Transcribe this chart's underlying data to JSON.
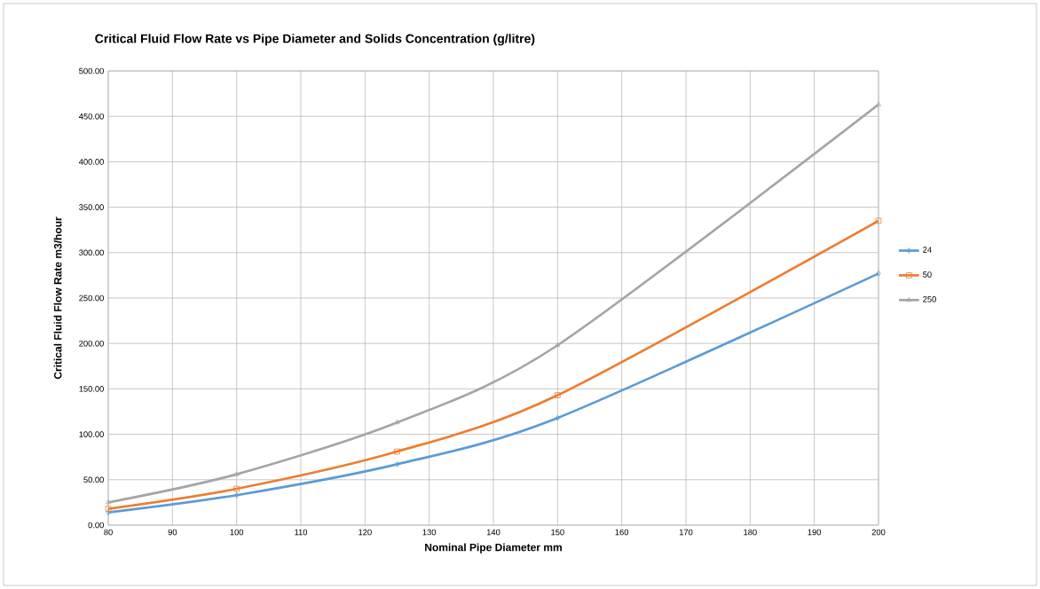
{
  "chart_data": {
    "type": "line",
    "title": "Critical Fluid Flow Rate vs Pipe Diameter and Solids Concentration (g/litre)",
    "xlabel": "Nominal Pipe Diameter mm",
    "ylabel": "Critical Fluid Flow Rate m3/hour",
    "x": [
      80,
      100,
      125,
      150,
      200
    ],
    "series": [
      {
        "name": "24",
        "color": "#5b9bd5",
        "marker": "diamond",
        "values": [
          14,
          33,
          67,
          118,
          277
        ]
      },
      {
        "name": "50",
        "color": "#ed7d31",
        "marker": "square",
        "values": [
          18,
          40,
          81,
          143,
          335
        ]
      },
      {
        "name": "250",
        "color": "#a5a5a5",
        "marker": "triangle",
        "values": [
          25,
          56,
          113,
          198,
          463
        ]
      }
    ],
    "xlim": [
      80,
      200
    ],
    "xticks": [
      80,
      90,
      100,
      110,
      120,
      130,
      140,
      150,
      160,
      170,
      180,
      190,
      200
    ],
    "ylim": [
      0,
      500
    ],
    "yticks": [
      {
        "value": 0,
        "label": "0.00"
      },
      {
        "value": 50,
        "label": "50.00"
      },
      {
        "value": 100,
        "label": "100.00"
      },
      {
        "value": 150,
        "label": "150.00"
      },
      {
        "value": 200,
        "label": "200.00"
      },
      {
        "value": 250,
        "label": "250.00"
      },
      {
        "value": 300,
        "label": "300.00"
      },
      {
        "value": 350,
        "label": "350.00"
      },
      {
        "value": 400,
        "label": "400.00"
      },
      {
        "value": 450,
        "label": "450.00"
      },
      {
        "value": 500,
        "label": "500.00"
      }
    ],
    "grid": true,
    "legend": "right",
    "line_style": "solid"
  }
}
